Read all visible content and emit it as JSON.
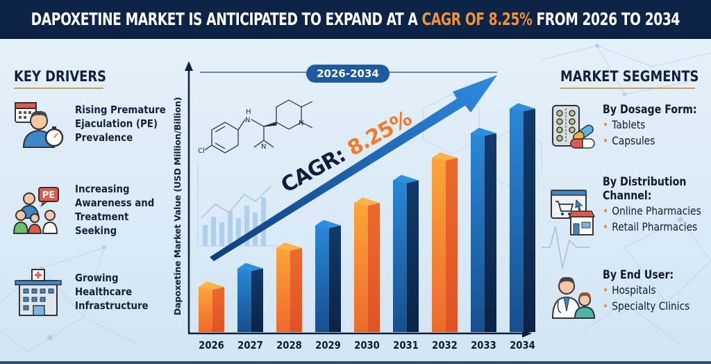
{
  "header": {
    "title_pre": "DAPOXETINE MARKET IS ANTICIPATED TO EXPAND AT A ",
    "title_highlight": "CAGR OF 8.25%",
    "title_post": " FROM 2026 TO 2034",
    "highlight_color": "#f0923c",
    "background_color": "#0e2447"
  },
  "key_drivers": {
    "title": "KEY DRIVERS",
    "items": [
      {
        "icon": "patient-stopwatch-icon",
        "lines": [
          "Rising Premature",
          "Ejaculation (PE)",
          "Prevalence"
        ]
      },
      {
        "icon": "family-doctor-pe-icon",
        "lines": [
          "Increasing",
          "Awareness and",
          "Treatment",
          "Seeking"
        ]
      },
      {
        "icon": "hospital-icon",
        "lines": [
          "Growing",
          "Healthcare",
          "Infrastructure"
        ]
      }
    ]
  },
  "market_segments": {
    "title": "MARKET SEGMENTS",
    "groups": [
      {
        "icon": "pill-blister-icon",
        "heading": [
          "By Dosage Form:"
        ],
        "items": [
          "Tablets",
          "Capsules"
        ]
      },
      {
        "icon": "online-store-icon",
        "heading": [
          "By Distribution",
          "Channel:"
        ],
        "items": [
          "Online Pharmacies",
          "Retail Pharmacies"
        ]
      },
      {
        "icon": "doctor-patient-icon",
        "heading": [
          "By End User:"
        ],
        "items": [
          "Hospitals",
          "Specialty Clinics"
        ]
      }
    ]
  },
  "chart_data": {
    "type": "bar",
    "title": "Dapoxetine Market Growth 2026-2034",
    "period_label": "2026-2034",
    "cagr_label": "CAGR:",
    "cagr_value": "8.25%",
    "xlabel": "",
    "ylabel": "Dapoxetine Market Value (USD Million/Billion)",
    "categories": [
      "2026",
      "2027",
      "2028",
      "2029",
      "2030",
      "2031",
      "2032",
      "2033",
      "2034"
    ],
    "values": [
      22,
      31,
      41,
      52,
      63,
      74,
      85,
      97,
      109
    ],
    "value_units": "relative (no y-axis ticks shown)",
    "ylim": [
      0,
      120
    ],
    "grid": false,
    "bar_colors": [
      "orange",
      "blue",
      "orange",
      "blue",
      "orange",
      "blue",
      "orange",
      "blue",
      "blue"
    ],
    "palette": {
      "orange_front": "#f59a2e",
      "orange_side": "#e4572a",
      "blue_front": "#1f6bb8",
      "blue_side": "#0c2a52"
    },
    "trend_arrow": true
  }
}
